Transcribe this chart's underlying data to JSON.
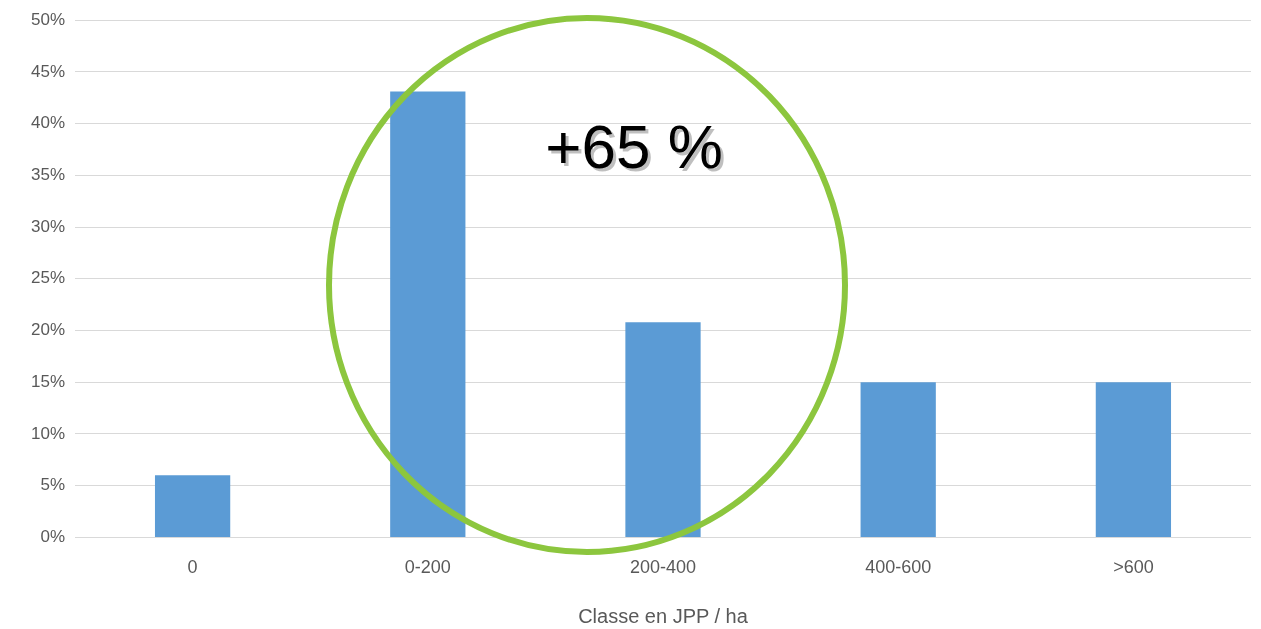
{
  "chart_data": {
    "type": "bar",
    "xlabel": "Classe en JPP / ha",
    "categories": [
      "0",
      "0-200",
      "200-400",
      "400-600",
      ">600"
    ],
    "series": [
      {
        "color": "#5b9bd5",
        "values": [
          6,
          43.1,
          20.8,
          15,
          15
        ]
      }
    ],
    "ylim": [
      0,
      50
    ],
    "yticks": [
      {
        "value": 0,
        "label": "0%"
      },
      {
        "value": 5,
        "label": "5%"
      },
      {
        "value": 10,
        "label": "10%"
      },
      {
        "value": 15,
        "label": "15%"
      },
      {
        "value": 20,
        "label": "20%"
      },
      {
        "value": 25,
        "label": "25%"
      },
      {
        "value": 30,
        "label": "30%"
      },
      {
        "value": 35,
        "label": "35%"
      },
      {
        "value": 40,
        "label": "40%"
      },
      {
        "value": 45,
        "label": "45%"
      },
      {
        "value": 50,
        "label": "50%"
      }
    ],
    "grid": "y",
    "legend": false,
    "annotations": [
      "+65 %"
    ]
  }
}
